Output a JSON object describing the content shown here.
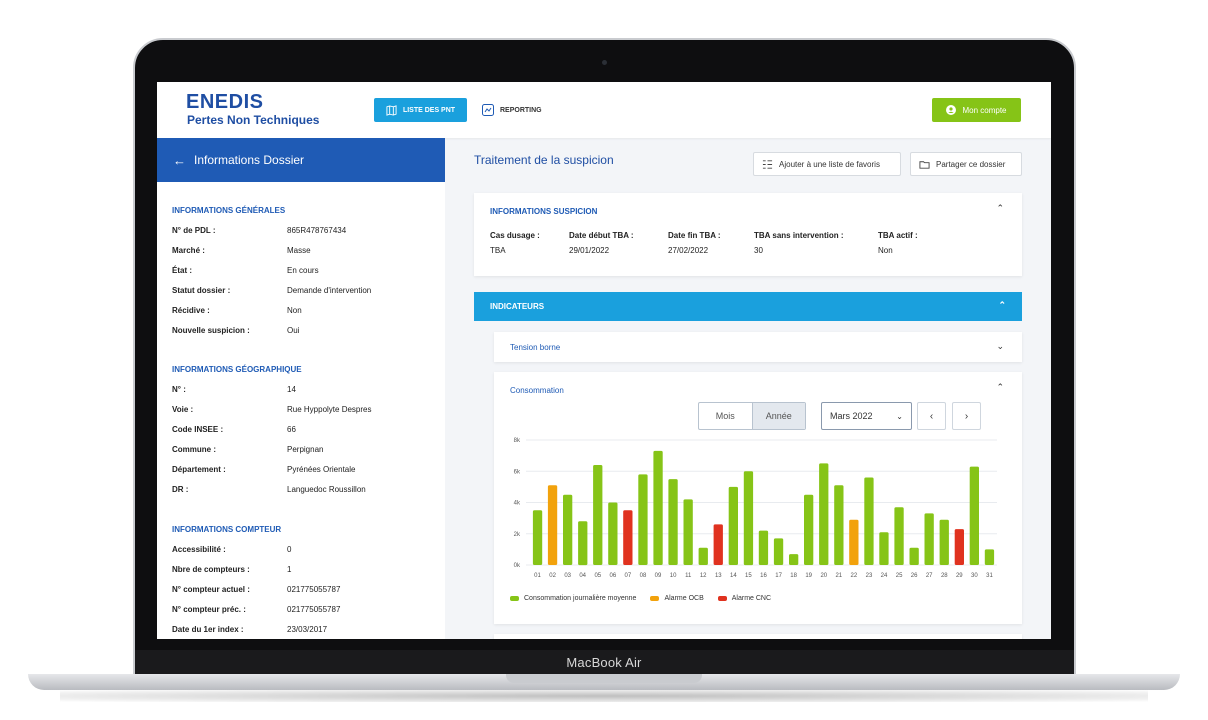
{
  "device": {
    "label": "MacBook Air"
  },
  "header": {
    "logo": "ENEDIS",
    "app_title": "Pertes Non Techniques",
    "nav": [
      {
        "label": "LISTE DES PNT",
        "icon": "map-icon"
      },
      {
        "label": "REPORTING",
        "icon": "chart-icon"
      }
    ],
    "account": {
      "label": "Mon compte",
      "icon": "user-icon"
    }
  },
  "sidebar": {
    "title": "Informations Dossier",
    "sections": [
      {
        "title": "INFORMATIONS GÉNÉRALES",
        "rows": [
          {
            "k": "N° de PDL :",
            "v": "865R478767434"
          },
          {
            "k": "Marché :",
            "v": "Masse"
          },
          {
            "k": "État :",
            "v": "En cours"
          },
          {
            "k": "Statut dossier :",
            "v": "Demande d'intervention"
          },
          {
            "k": "Récidive :",
            "v": "Non"
          },
          {
            "k": "Nouvelle suspicion :",
            "v": "Oui"
          }
        ]
      },
      {
        "title": "INFORMATIONS GÉOGRAPHIQUE",
        "rows": [
          {
            "k": "N° :",
            "v": "14"
          },
          {
            "k": "Voie :",
            "v": "Rue Hyppolyte Despres"
          },
          {
            "k": "Code INSEE :",
            "v": "66"
          },
          {
            "k": "Commune :",
            "v": "Perpignan"
          },
          {
            "k": "Département :",
            "v": "Pyrénées Orientale"
          },
          {
            "k": "DR :",
            "v": "Languedoc Roussillon"
          }
        ]
      },
      {
        "title": "INFORMATIONS COMPTEUR",
        "rows": [
          {
            "k": "Accessibilité :",
            "v": "0"
          },
          {
            "k": "Nbre de compteurs :",
            "v": "1"
          },
          {
            "k": "N° compteur actuel :",
            "v": "021775055787"
          },
          {
            "k": "N° compteur préc. :",
            "v": "021775055787"
          },
          {
            "k": "Date du 1er index :",
            "v": "23/03/2017"
          }
        ]
      }
    ]
  },
  "main": {
    "title": "Traitement de la suspicion",
    "actions": [
      {
        "label": "Ajouter à une liste de favoris",
        "icon": "list-icon"
      },
      {
        "label": "Partager ce dossier",
        "icon": "share-icon"
      }
    ],
    "suspicion": {
      "title": "INFORMATIONS SUSPICION",
      "columns": [
        {
          "k": "Cas dusage :",
          "v": "TBA"
        },
        {
          "k": "Date début TBA :",
          "v": "29/01/2022"
        },
        {
          "k": "Date fin TBA :",
          "v": "27/02/2022"
        },
        {
          "k": "TBA sans intervention :",
          "v": "30"
        },
        {
          "k": "TBA actif :",
          "v": "Non"
        }
      ]
    },
    "indicateurs": {
      "title": "INDICATEURS"
    },
    "tension": {
      "title": "Tension borne"
    },
    "consommation": {
      "title": "Consommation",
      "period_toggle": [
        "Mois",
        "Année"
      ],
      "period_selected": "Année",
      "month_select": "Mars 2022",
      "prev_icon": "chevron-left-icon",
      "next_icon": "chevron-right-icon"
    }
  },
  "colors": {
    "green": "#86c417",
    "orange": "#f2a20c",
    "red": "#e0321f",
    "blue": "#1aa0dd",
    "navy": "#1f5bb5"
  },
  "chart_data": {
    "type": "bar",
    "title": "",
    "xlabel": "",
    "ylabel": "",
    "ylim": [
      0,
      8000
    ],
    "yticks": [
      "0k",
      "2k",
      "4k",
      "6k",
      "8k"
    ],
    "categories": [
      "01",
      "02",
      "03",
      "04",
      "05",
      "06",
      "07",
      "08",
      "09",
      "10",
      "11",
      "12",
      "13",
      "14",
      "15",
      "16",
      "17",
      "18",
      "19",
      "20",
      "21",
      "22",
      "23",
      "24",
      "25",
      "26",
      "27",
      "28",
      "29",
      "30",
      "31"
    ],
    "values": [
      3500,
      5100,
      4500,
      2800,
      6400,
      4000,
      3500,
      5800,
      7300,
      5500,
      4200,
      1100,
      2600,
      5000,
      6000,
      2200,
      1700,
      700,
      4500,
      6500,
      5100,
      2900,
      5600,
      2100,
      3700,
      1100,
      3300,
      2900,
      2300,
      6300,
      1000
    ],
    "series_type": [
      "conso",
      "ocb",
      "conso",
      "conso",
      "conso",
      "conso",
      "cnc",
      "conso",
      "conso",
      "conso",
      "conso",
      "conso",
      "cnc",
      "conso",
      "conso",
      "conso",
      "conso",
      "conso",
      "conso",
      "conso",
      "conso",
      "ocb",
      "conso",
      "conso",
      "conso",
      "conso",
      "conso",
      "conso",
      "cnc",
      "conso",
      "conso"
    ],
    "legend": [
      {
        "name": "Consommation journalière moyenne",
        "key": "conso",
        "color": "#86c417"
      },
      {
        "name": "Alarme OCB",
        "key": "ocb",
        "color": "#f2a20c"
      },
      {
        "name": "Alarme CNC",
        "key": "cnc",
        "color": "#e0321f"
      }
    ],
    "legend_position": "bottom-left",
    "grid": true
  }
}
